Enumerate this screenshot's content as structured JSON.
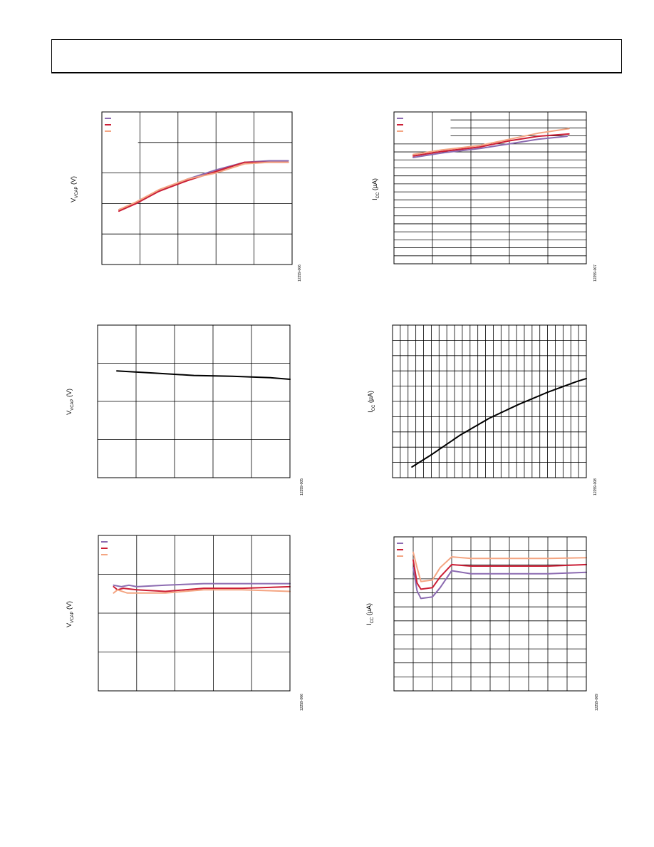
{
  "header": {
    "text": ""
  },
  "charts": [
    {
      "id": "fig-006",
      "ylabel_main": "V",
      "ylabel_sub": "VCAP",
      "ylabel_unit": " (V)",
      "fignum": "12259-006",
      "grid": {
        "cols": 5,
        "rows": 5
      },
      "legend": {
        "entries": 3,
        "colors": [
          "#8c6bb1",
          "#cc1f36",
          "#f4a582"
        ],
        "block": "top-left"
      },
      "chart_data": {
        "type": "line",
        "x_range": [
          0,
          100
        ],
        "y_range": [
          0,
          100
        ],
        "series": [
          {
            "color": "#8c6bb1",
            "points": [
              [
                9,
                36
              ],
              [
                18,
                40
              ],
              [
                30,
                48
              ],
              [
                45,
                56
              ],
              [
                60,
                62
              ],
              [
                75,
                67
              ],
              [
                88,
                68
              ],
              [
                98,
                68
              ]
            ]
          },
          {
            "color": "#cc1f36",
            "points": [
              [
                9,
                35
              ],
              [
                18,
                40
              ],
              [
                30,
                48
              ],
              [
                45,
                55
              ],
              [
                60,
                61
              ],
              [
                75,
                67
              ],
              [
                88,
                67
              ],
              [
                98,
                67
              ]
            ]
          },
          {
            "color": "#f4a582",
            "points": [
              [
                9,
                36
              ],
              [
                18,
                41
              ],
              [
                30,
                49
              ],
              [
                45,
                56
              ],
              [
                60,
                60
              ],
              [
                75,
                66
              ],
              [
                88,
                67
              ],
              [
                98,
                67
              ]
            ]
          }
        ]
      }
    },
    {
      "id": "fig-007",
      "ylabel_main": "I",
      "ylabel_sub": "CC",
      "ylabel_unit": " (µA)",
      "fignum": "12259-007",
      "grid": {
        "cols": 5,
        "rows": 19
      },
      "legend": {
        "entries": 3,
        "colors": [
          "#8c6bb1",
          "#cc1f36",
          "#f4a582"
        ],
        "block": "top-left"
      },
      "chart_data": {
        "type": "line",
        "x_range": [
          0,
          100
        ],
        "y_range": [
          0,
          100
        ],
        "series": [
          {
            "color": "#8c6bb1",
            "points": [
              [
                10,
                70
              ],
              [
                25,
                73
              ],
              [
                45,
                76
              ],
              [
                60,
                79
              ],
              [
                75,
                82
              ],
              [
                90,
                84
              ]
            ]
          },
          {
            "color": "#cc1f36",
            "points": [
              [
                10,
                71
              ],
              [
                25,
                74
              ],
              [
                45,
                77
              ],
              [
                60,
                81
              ],
              [
                75,
                84
              ],
              [
                91,
                85.5
              ]
            ]
          },
          {
            "color": "#f4a582",
            "points": [
              [
                10,
                72
              ],
              [
                25,
                75
              ],
              [
                45,
                78
              ],
              [
                60,
                82
              ],
              [
                75,
                86
              ],
              [
                91,
                89
              ]
            ]
          }
        ]
      }
    },
    {
      "id": "fig-005",
      "ylabel_main": "V",
      "ylabel_sub": "VCAP",
      "ylabel_unit": " (V)",
      "fignum": "12259-005",
      "grid": {
        "cols": 5,
        "rows": 4
      },
      "legend": null,
      "chart_data": {
        "type": "line",
        "x_range": [
          0,
          100
        ],
        "y_range": [
          0,
          100
        ],
        "series": [
          {
            "color": "#000000",
            "points": [
              [
                10,
                70
              ],
              [
                30,
                68.5
              ],
              [
                50,
                67
              ],
              [
                70,
                66.5
              ],
              [
                90,
                65.5
              ],
              [
                100,
                64.5
              ]
            ]
          }
        ]
      }
    },
    {
      "id": "fig-008",
      "ylabel_main": "I",
      "ylabel_sub": "CC",
      "ylabel_unit": " (µA)",
      "fignum": "12259-008",
      "grid": {
        "cols": 25,
        "rows": 10
      },
      "legend": null,
      "chart_data": {
        "type": "line",
        "x_range": [
          0,
          100
        ],
        "y_range": [
          0,
          100
        ],
        "series": [
          {
            "color": "#000000",
            "points": [
              [
                10,
                7
              ],
              [
                20,
                15
              ],
              [
                35,
                28
              ],
              [
                50,
                39
              ],
              [
                65,
                48
              ],
              [
                80,
                56
              ],
              [
                95,
                63
              ],
              [
                100,
                65
              ]
            ]
          }
        ]
      }
    },
    {
      "id": "fig-006b",
      "ylabel_main": "V",
      "ylabel_sub": "VCAP",
      "ylabel_unit": " (V)",
      "fignum": "12259-006",
      "grid": {
        "cols": 5,
        "rows": 4
      },
      "legend": {
        "entries": 3,
        "colors": [
          "#8c6bb1",
          "#cc1f36",
          "#f4a582"
        ],
        "block": "top-left"
      },
      "chart_data": {
        "type": "line",
        "x_range": [
          0,
          100
        ],
        "y_range": [
          0,
          100
        ],
        "series": [
          {
            "color": "#8c6bb1",
            "points": [
              [
                8,
                68
              ],
              [
                12,
                67
              ],
              [
                16,
                68
              ],
              [
                20,
                67
              ],
              [
                35,
                68
              ],
              [
                55,
                69
              ],
              [
                75,
                69
              ],
              [
                100,
                69
              ]
            ]
          },
          {
            "color": "#cc1f36",
            "points": [
              [
                8,
                67
              ],
              [
                10,
                65
              ],
              [
                13,
                66
              ],
              [
                20,
                65
              ],
              [
                35,
                64
              ],
              [
                55,
                66
              ],
              [
                75,
                66
              ],
              [
                100,
                67
              ]
            ]
          },
          {
            "color": "#f4a582",
            "points": [
              [
                8,
                63
              ],
              [
                10,
                65
              ],
              [
                15,
                63
              ],
              [
                20,
                63
              ],
              [
                35,
                63
              ],
              [
                55,
                65
              ],
              [
                75,
                65
              ],
              [
                100,
                64
              ]
            ]
          }
        ]
      }
    },
    {
      "id": "fig-009",
      "ylabel_main": "I",
      "ylabel_sub": "CC",
      "ylabel_unit": " (µA)",
      "fignum": "12259-009",
      "grid": {
        "cols": 10,
        "rows": 11
      },
      "legend": {
        "entries": 3,
        "colors": [
          "#8c6bb1",
          "#cc1f36",
          "#f4a582"
        ],
        "block": "top-left"
      },
      "chart_data": {
        "type": "line",
        "x_range": [
          0,
          100
        ],
        "y_range": [
          0,
          100
        ],
        "series": [
          {
            "color": "#8c6bb1",
            "points": [
              [
                10,
                80
              ],
              [
                12,
                65
              ],
              [
                14,
                60
              ],
              [
                20,
                61
              ],
              [
                24,
                67
              ],
              [
                30,
                78
              ],
              [
                40,
                76
              ],
              [
                60,
                76
              ],
              [
                80,
                76
              ],
              [
                100,
                77
              ]
            ]
          },
          {
            "color": "#cc1f36",
            "points": [
              [
                10,
                85
              ],
              [
                12,
                70
              ],
              [
                14,
                66
              ],
              [
                20,
                67
              ],
              [
                24,
                74
              ],
              [
                30,
                82
              ],
              [
                40,
                81
              ],
              [
                60,
                81
              ],
              [
                80,
                81
              ],
              [
                100,
                82
              ]
            ]
          },
          {
            "color": "#f4a582",
            "points": [
              [
                10,
                90
              ],
              [
                12,
                80
              ],
              [
                14,
                71
              ],
              [
                20,
                72
              ],
              [
                24,
                80
              ],
              [
                30,
                87
              ],
              [
                40,
                86
              ],
              [
                60,
                86
              ],
              [
                80,
                86
              ],
              [
                100,
                86.5
              ]
            ]
          }
        ]
      }
    }
  ]
}
